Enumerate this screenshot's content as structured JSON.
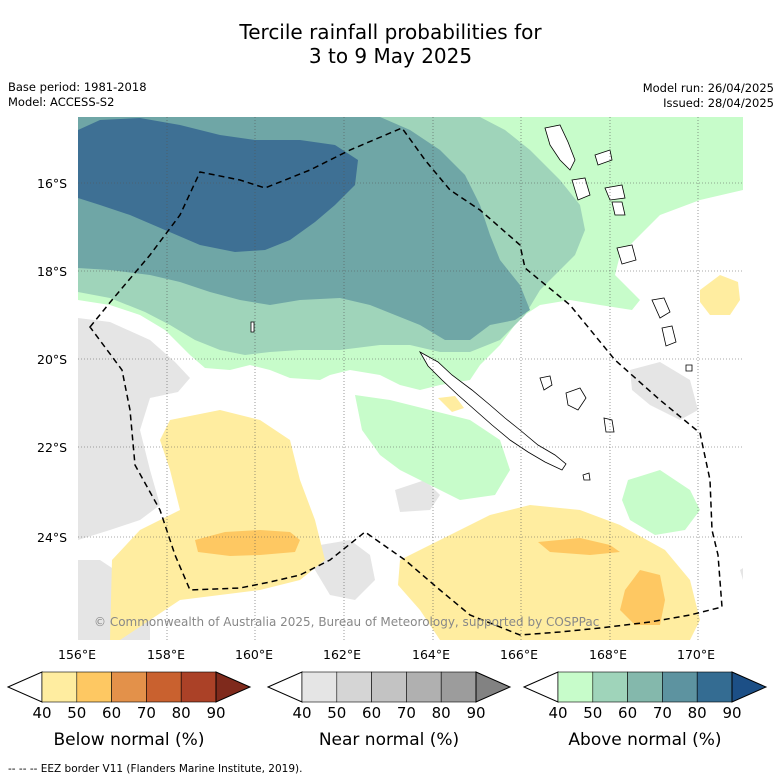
{
  "title": {
    "line1": "Tercile rainfall probabilities for",
    "line2": "3 to 9 May 2025"
  },
  "meta": {
    "base_period": "Base period: 1981-2018",
    "model": "Model: ACCESS-S2",
    "model_run": "Model run: 26/04/2025",
    "issued": "Issued: 28/04/2025"
  },
  "map": {
    "lat_labels": [
      "16°S",
      "18°S",
      "20°S",
      "22°S",
      "24°S"
    ],
    "lon_labels": [
      "156°E",
      "158°E",
      "160°E",
      "162°E",
      "164°E",
      "166°E",
      "168°E",
      "170°E"
    ],
    "credit": "© Commonwealth of Australia 2025, Bureau of Meteorology, supported by COSPPac"
  },
  "colorbars": [
    {
      "label": "Below normal (%)",
      "ticks": [
        "40",
        "50",
        "60",
        "70",
        "80",
        "90"
      ],
      "colors": [
        "#ffffff",
        "#ffeda0",
        "#fec862",
        "#e3914a",
        "#c9612f",
        "#ab4127",
        "#7f2a1c"
      ]
    },
    {
      "label": "Near normal (%)",
      "ticks": [
        "40",
        "50",
        "60",
        "70",
        "80",
        "90"
      ],
      "colors": [
        "#ffffff",
        "#e5e5e5",
        "#d5d5d5",
        "#c3c3c3",
        "#b0b0b0",
        "#9c9c9c",
        "#828282"
      ]
    },
    {
      "label": "Above normal (%)",
      "ticks": [
        "40",
        "50",
        "60",
        "70",
        "80",
        "90"
      ],
      "colors": [
        "#ffffff",
        "#c7fcca",
        "#9fd4ba",
        "#84b8ac",
        "#5d93a0",
        "#346c92",
        "#1c4f86"
      ]
    }
  ],
  "footer": "--  --  -- EEZ border V11 (Flanders Marine Institute, 2019)."
}
